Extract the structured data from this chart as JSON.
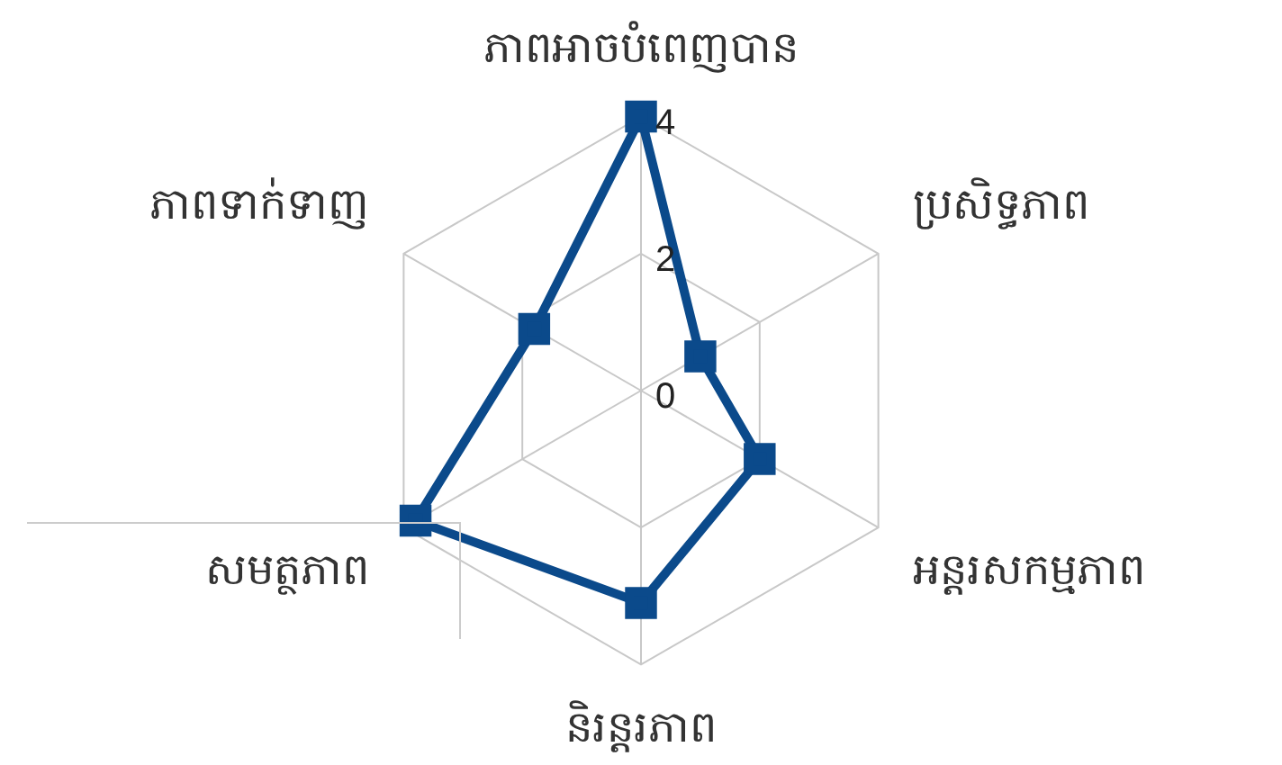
{
  "chart_data": {
    "type": "radar",
    "categories": [
      "ភាពអាចបំពេញបាន",
      "ប្រសិទ្ធភាព",
      "អន្តរសកម្មភាព",
      "និរន្តរភាព",
      "សមត្ថភាព",
      "ភាពទាក់ទាញ"
    ],
    "series": [
      {
        "color": "#0b4a8b",
        "values": [
          4,
          1,
          2,
          3.1,
          3.8,
          1.8
        ]
      }
    ],
    "ylim": [
      0,
      4
    ],
    "yticks": [
      0,
      2,
      4
    ],
    "marker": "square",
    "legend": false,
    "grid": true
  }
}
